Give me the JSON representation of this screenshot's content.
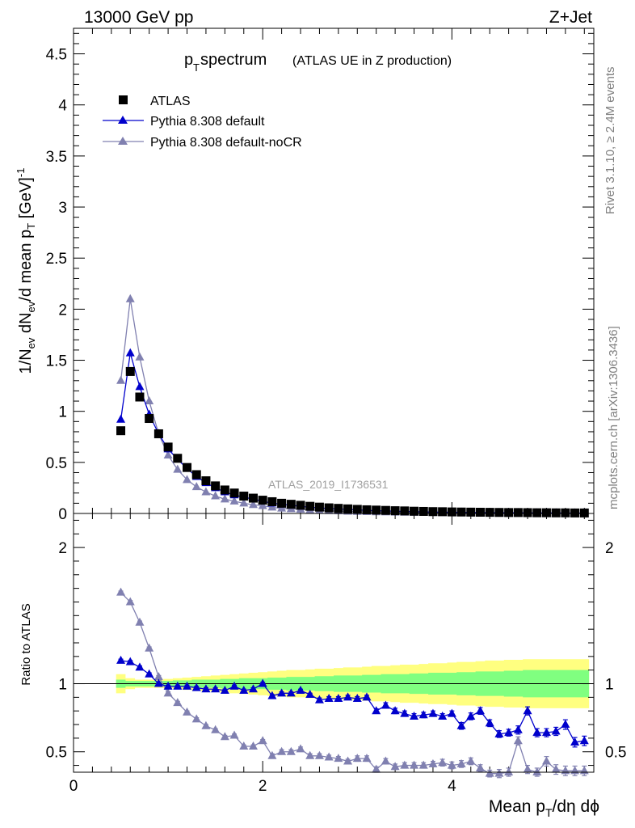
{
  "header": {
    "beam": "13000 GeV pp",
    "process": "Z+Jet",
    "title_main": "p",
    "title_sub": "T",
    "title_word": " spectrum",
    "title_paren": "(ATLAS UE in Z production)",
    "watermark": "ATLAS_2019_I1736531",
    "side_rivet": "Rivet 3.1.10, ≥ 2.4M events",
    "side_mcplots": "mcplots.cern.ch [arXiv:1306.3436]"
  },
  "chart_data": [
    {
      "type": "scatter",
      "panel": "main",
      "ylabel": "1/N_ev dN_ev/d mean p_T [GeV]^-1",
      "ylim": [
        0,
        4.75
      ],
      "yticks": [
        "0",
        "0.5",
        "1",
        "1.5",
        "2",
        "2.5",
        "3",
        "3.5",
        "4",
        "4.5"
      ],
      "legend_placement": "top-left",
      "x": [
        0.5,
        0.6,
        0.7,
        0.8,
        0.9,
        1.0,
        1.1,
        1.2,
        1.3,
        1.4,
        1.5,
        1.6,
        1.7,
        1.8,
        1.9,
        2.0,
        2.1,
        2.2,
        2.3,
        2.4,
        2.5,
        2.6,
        2.7,
        2.8,
        2.9,
        3.0,
        3.1,
        3.2,
        3.3,
        3.4,
        3.5,
        3.6,
        3.7,
        3.8,
        3.9,
        4.0,
        4.1,
        4.2,
        4.3,
        4.4,
        4.5,
        4.6,
        4.7,
        4.8,
        4.9,
        5.0,
        5.1,
        5.2,
        5.3,
        5.4
      ],
      "series": [
        {
          "name": "ATLAS",
          "color": "#000000",
          "marker": "square",
          "values": [
            0.81,
            1.39,
            1.14,
            0.93,
            0.78,
            0.65,
            0.54,
            0.45,
            0.38,
            0.32,
            0.27,
            0.23,
            0.2,
            0.17,
            0.15,
            0.13,
            0.115,
            0.1,
            0.09,
            0.08,
            0.07,
            0.062,
            0.055,
            0.05,
            0.045,
            0.04,
            0.036,
            0.033,
            0.03,
            0.027,
            0.025,
            0.022,
            0.02,
            0.018,
            0.017,
            0.015,
            0.014,
            0.013,
            0.012,
            0.011,
            0.01,
            0.009,
            0.009,
            0.008,
            0.007,
            0.007,
            0.006,
            0.006,
            0.005,
            0.005
          ]
        },
        {
          "name": "Pythia 8.308 default",
          "color": "#0000cc",
          "marker": "triangle",
          "values": [
            0.92,
            1.57,
            1.24,
            0.97,
            0.78,
            0.63,
            0.53,
            0.44,
            0.36,
            0.3,
            0.25,
            0.21,
            0.18,
            0.16,
            0.14,
            0.12,
            0.1,
            0.09,
            0.08,
            0.07,
            0.06,
            0.054,
            0.048,
            0.044,
            0.04,
            0.035,
            0.03,
            0.027,
            0.025,
            0.022,
            0.02,
            0.018,
            0.016,
            0.014,
            0.013,
            0.012,
            0.011,
            0.01,
            0.009,
            0.008,
            0.007,
            0.007,
            0.007,
            0.006,
            0.005,
            0.005,
            0.005,
            0.004,
            0.004,
            0.004
          ]
        },
        {
          "name": "Pythia 8.308 default-noCR",
          "color": "#8080b0",
          "marker": "triangle",
          "values": [
            1.3,
            2.1,
            1.53,
            1.1,
            0.78,
            0.57,
            0.43,
            0.33,
            0.26,
            0.21,
            0.17,
            0.14,
            0.12,
            0.1,
            0.085,
            0.075,
            0.06,
            0.05,
            0.045,
            0.04,
            0.034,
            0.03,
            0.026,
            0.024,
            0.02,
            0.018,
            0.016,
            0.014,
            0.013,
            0.011,
            0.01,
            0.009,
            0.008,
            0.007,
            0.006,
            0.006,
            0.005,
            0.005,
            0.004,
            0.004,
            0.003,
            0.003,
            0.004,
            0.003,
            0.003,
            0.002,
            0.002,
            0.002,
            0.002,
            0.002
          ]
        }
      ]
    },
    {
      "type": "scatter",
      "panel": "ratio",
      "ylabel": "Ratio to ATLAS",
      "xlabel": "Mean p_T/dη dϕ",
      "xlim": [
        0,
        5.5
      ],
      "ylim": [
        0.35,
        2.25
      ],
      "yticks": [
        "0.5",
        "1",
        "2"
      ],
      "xticks": [
        "0",
        "2",
        "4"
      ],
      "reference_line": 1,
      "bands": {
        "stat": {
          "color": "#80ff80",
          "halfwidth": [
            0.03,
            0.02,
            0.02,
            0.02,
            0.02,
            0.02,
            0.025,
            0.025,
            0.03,
            0.03,
            0.03,
            0.035,
            0.035,
            0.04,
            0.04,
            0.04,
            0.045,
            0.045,
            0.05,
            0.05,
            0.05,
            0.055,
            0.055,
            0.06,
            0.06,
            0.06,
            0.065,
            0.065,
            0.07,
            0.07,
            0.07,
            0.075,
            0.075,
            0.08,
            0.08,
            0.08,
            0.085,
            0.085,
            0.09,
            0.09,
            0.09,
            0.095,
            0.095,
            0.1,
            0.1,
            0.1,
            0.1,
            0.1,
            0.1,
            0.1
          ]
        },
        "syst": {
          "color": "#ffff80",
          "halfwidth": [
            0.07,
            0.04,
            0.03,
            0.03,
            0.03,
            0.035,
            0.04,
            0.045,
            0.05,
            0.055,
            0.06,
            0.065,
            0.07,
            0.075,
            0.08,
            0.085,
            0.09,
            0.095,
            0.1,
            0.1,
            0.105,
            0.11,
            0.11,
            0.115,
            0.12,
            0.12,
            0.125,
            0.13,
            0.13,
            0.135,
            0.14,
            0.14,
            0.145,
            0.15,
            0.15,
            0.155,
            0.16,
            0.16,
            0.165,
            0.17,
            0.17,
            0.175,
            0.175,
            0.18,
            0.18,
            0.18,
            0.18,
            0.18,
            0.18,
            0.18
          ]
        }
      },
      "series": [
        {
          "name": "Pythia 8.308 default",
          "color": "#0000cc",
          "values": [
            1.17,
            1.16,
            1.12,
            1.07,
            1.0,
            0.98,
            0.98,
            0.98,
            0.97,
            0.96,
            0.96,
            0.95,
            0.98,
            0.95,
            0.96,
            1.0,
            0.91,
            0.93,
            0.93,
            0.95,
            0.92,
            0.88,
            0.89,
            0.89,
            0.9,
            0.89,
            0.9,
            0.8,
            0.84,
            0.8,
            0.78,
            0.76,
            0.77,
            0.78,
            0.76,
            0.78,
            0.69,
            0.76,
            0.8,
            0.71,
            0.63,
            0.64,
            0.66,
            0.8,
            0.64,
            0.64,
            0.65,
            0.7,
            0.57,
            0.58
          ],
          "errors": [
            0.01,
            0.01,
            0.01,
            0.01,
            0.01,
            0.01,
            0.01,
            0.01,
            0.01,
            0.01,
            0.01,
            0.01,
            0.01,
            0.01,
            0.01,
            0.01,
            0.01,
            0.01,
            0.01,
            0.01,
            0.01,
            0.015,
            0.015,
            0.015,
            0.015,
            0.015,
            0.015,
            0.015,
            0.02,
            0.02,
            0.02,
            0.02,
            0.02,
            0.02,
            0.02,
            0.02,
            0.025,
            0.025,
            0.025,
            0.025,
            0.025,
            0.025,
            0.03,
            0.03,
            0.03,
            0.03,
            0.03,
            0.035,
            0.035,
            0.035
          ]
        },
        {
          "name": "Pythia 8.308 default-noCR",
          "color": "#8080b0",
          "values": [
            1.67,
            1.6,
            1.45,
            1.26,
            1.05,
            0.93,
            0.86,
            0.79,
            0.74,
            0.69,
            0.66,
            0.61,
            0.62,
            0.54,
            0.54,
            0.58,
            0.47,
            0.5,
            0.5,
            0.52,
            0.47,
            0.47,
            0.46,
            0.45,
            0.43,
            0.45,
            0.45,
            0.37,
            0.43,
            0.39,
            0.4,
            0.4,
            0.4,
            0.41,
            0.42,
            0.4,
            0.41,
            0.43,
            0.38,
            0.34,
            0.34,
            0.35,
            0.58,
            0.37,
            0.35,
            0.43,
            0.37,
            0.36,
            0.36,
            0.36
          ],
          "errors": [
            0.01,
            0.01,
            0.01,
            0.01,
            0.01,
            0.01,
            0.01,
            0.01,
            0.01,
            0.01,
            0.01,
            0.01,
            0.01,
            0.01,
            0.01,
            0.01,
            0.015,
            0.015,
            0.015,
            0.015,
            0.015,
            0.015,
            0.015,
            0.015,
            0.015,
            0.02,
            0.02,
            0.02,
            0.02,
            0.02,
            0.02,
            0.02,
            0.02,
            0.02,
            0.025,
            0.025,
            0.025,
            0.025,
            0.025,
            0.025,
            0.03,
            0.03,
            0.03,
            0.03,
            0.03,
            0.035,
            0.035,
            0.035,
            0.035,
            0.035
          ]
        }
      ]
    }
  ]
}
